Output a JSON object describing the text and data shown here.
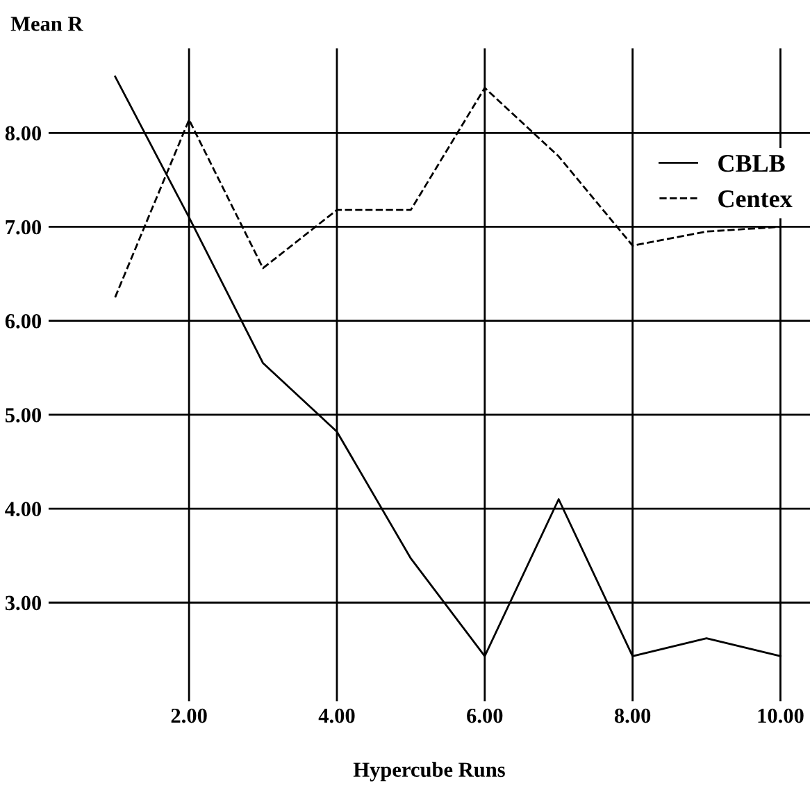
{
  "chart_data": {
    "type": "line",
    "ylabel": "Mean R",
    "xlabel": "Hypercube Runs",
    "x": [
      1,
      2,
      3,
      4,
      5,
      6,
      7,
      8,
      9,
      10
    ],
    "series": [
      {
        "name": "CBLB",
        "color": "#000000",
        "line_style": "solid",
        "values": [
          8.6,
          7.1,
          5.55,
          4.82,
          3.47,
          2.43,
          4.1,
          2.43,
          2.62,
          2.43
        ]
      },
      {
        "name": "Centex",
        "color": "#000000",
        "line_style": "dashed",
        "values": [
          6.25,
          8.14,
          6.56,
          7.18,
          7.18,
          8.48,
          7.75,
          6.8,
          6.95,
          7.0
        ]
      }
    ],
    "xlim": [
      0.1,
      10.4
    ],
    "ylim": [
      1.95,
      8.9
    ],
    "xticks": [
      {
        "value": 2,
        "label": "2.00"
      },
      {
        "value": 4,
        "label": "4.00"
      },
      {
        "value": 6,
        "label": "6.00"
      },
      {
        "value": 8,
        "label": "8.00"
      },
      {
        "value": 10,
        "label": "10.00"
      }
    ],
    "yticks": [
      {
        "value": 3,
        "label": "3.00"
      },
      {
        "value": 4,
        "label": "4.00"
      },
      {
        "value": 5,
        "label": "5.00"
      },
      {
        "value": 6,
        "label": "6.00"
      },
      {
        "value": 7,
        "label": "7.00"
      },
      {
        "value": 8,
        "label": "8.00"
      }
    ],
    "grid": true,
    "legend": "top right",
    "marker": "none"
  }
}
